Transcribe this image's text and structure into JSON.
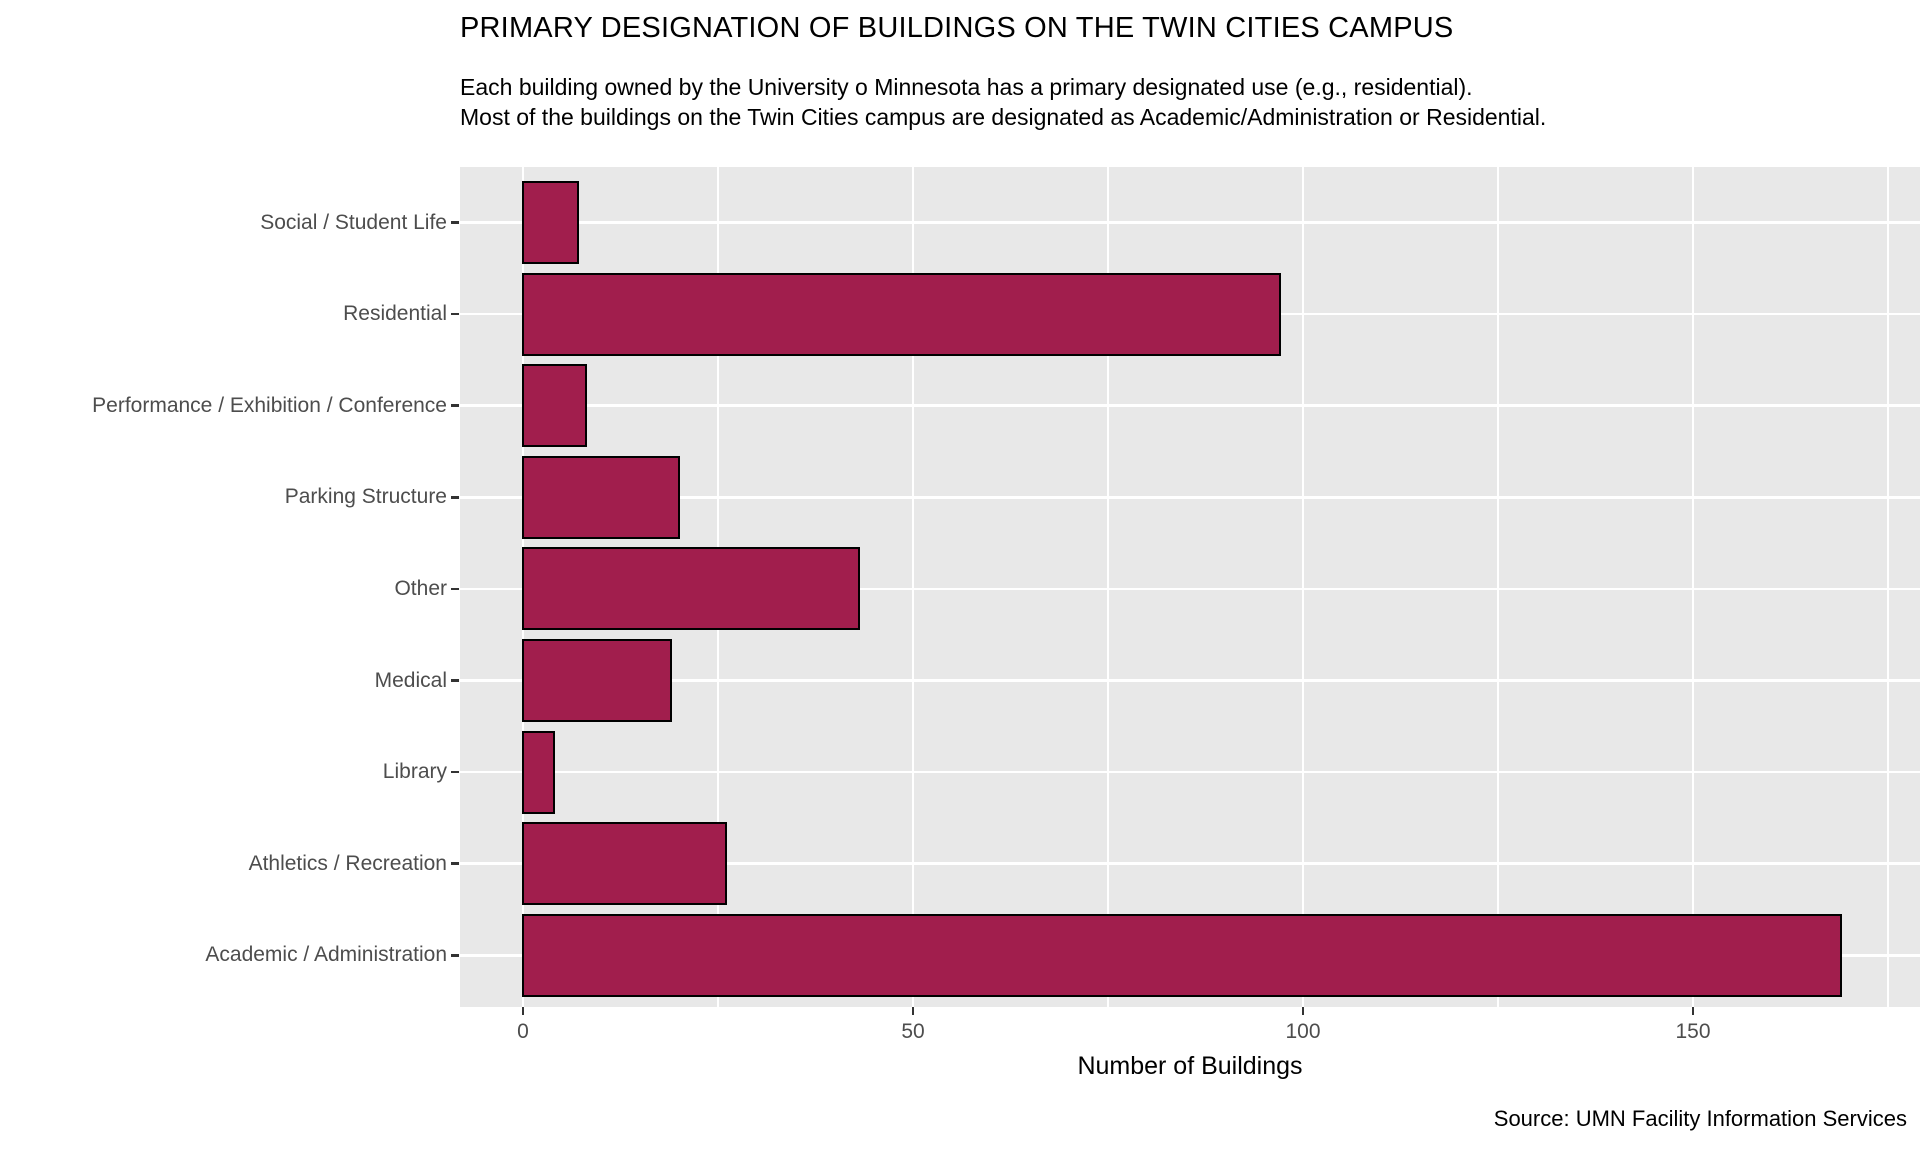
{
  "chart_data": {
    "type": "bar",
    "orientation": "horizontal",
    "title": "PRIMARY DESIGNATION OF BUILDINGS ON THE TWIN CITIES CAMPUS",
    "subtitle_line1": "Each building owned by the University o Minnesota has a primary designated use (e.g., residential).",
    "subtitle_line2": "Most of the buildings on the Twin Cities campus are designated as Academic/Administration or Residential.",
    "xlabel": "Number of Buildings",
    "caption": "Source: UMN Facility Information Services",
    "categories": [
      "Social / Student Life",
      "Residential",
      "Performance / Exhibition / Conference",
      "Parking Structure",
      "Other",
      "Medical",
      "Library",
      "Athletics / Recreation",
      "Academic / Administration"
    ],
    "values": [
      7,
      97,
      8,
      20,
      43,
      19,
      4,
      26,
      169
    ],
    "x_ticks": [
      0,
      50,
      100,
      150
    ],
    "x_minor_ticks": [
      25,
      75,
      125,
      175
    ],
    "xlim": [
      -8,
      179
    ],
    "grid": "white-major-and-minor-on-gray-panel",
    "legend": "none",
    "colors": {
      "bar_fill": "#A11E4D",
      "bar_border": "#000000",
      "panel_bg": "#E8E8E8",
      "grid_line": "#FFFFFF",
      "axis_text": "#4D4D4D",
      "title_text": "#000000"
    }
  }
}
